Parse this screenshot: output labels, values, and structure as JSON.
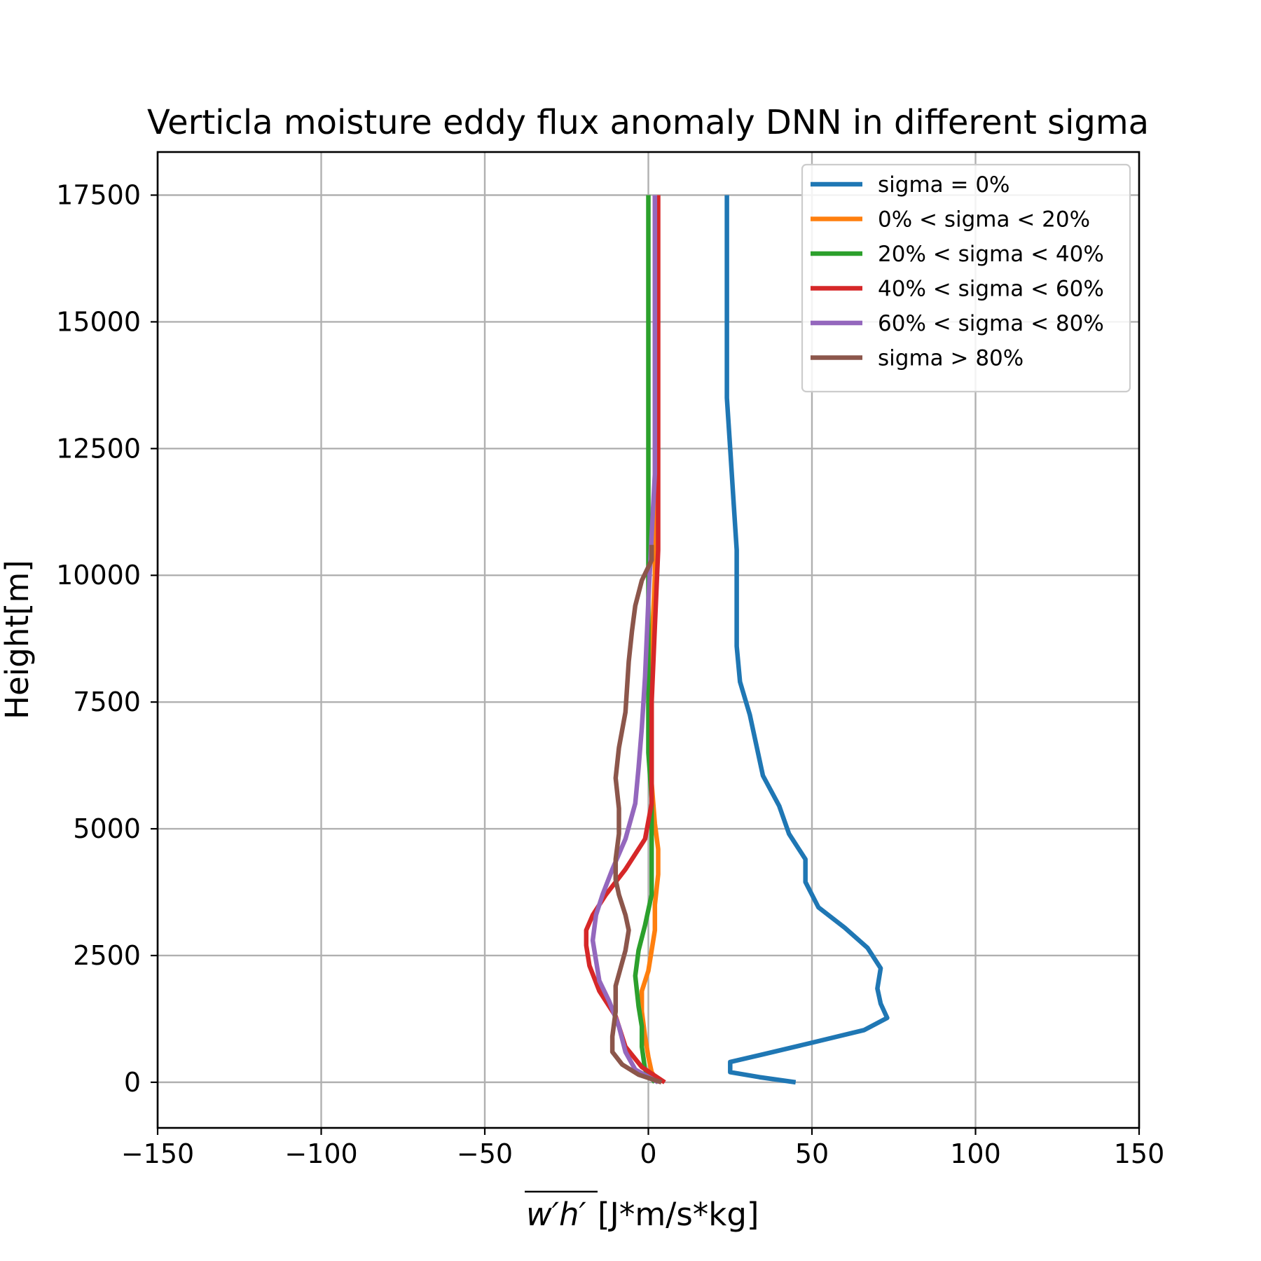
{
  "chart_data": {
    "type": "line",
    "title": "Verticla moisture eddy flux anomaly DNN in different sigma",
    "xlabel": "[J*m/s*kg]",
    "xlabel_math": "w′h′",
    "ylabel": "Height[m]",
    "xlim": [
      -150,
      150
    ],
    "ylim": [
      -900,
      18350
    ],
    "xticks": [
      -150,
      -100,
      -50,
      0,
      50,
      100,
      150
    ],
    "xtick_labels": [
      "−150",
      "−100",
      "−50",
      "0",
      "50",
      "100",
      "150"
    ],
    "yticks": [
      0,
      2500,
      5000,
      7500,
      10000,
      12500,
      15000,
      17500
    ],
    "ytick_labels": [
      "0",
      "2500",
      "5000",
      "7500",
      "10000",
      "12500",
      "15000",
      "17500"
    ],
    "grid": true,
    "legend_position": "upper-right",
    "series": [
      {
        "name": "sigma = 0%",
        "color": "#1f77b4",
        "points": [
          [
            45,
            0
          ],
          [
            34,
            100
          ],
          [
            25,
            200
          ],
          [
            25,
            400
          ],
          [
            35,
            550
          ],
          [
            50,
            780
          ],
          [
            66,
            1030
          ],
          [
            73,
            1270
          ],
          [
            71,
            1550
          ],
          [
            70,
            1850
          ],
          [
            71,
            2250
          ],
          [
            67,
            2650
          ],
          [
            60,
            3050
          ],
          [
            52,
            3450
          ],
          [
            48,
            3950
          ],
          [
            48,
            4400
          ],
          [
            43,
            4900
          ],
          [
            40,
            5450
          ],
          [
            35,
            6050
          ],
          [
            31,
            7250
          ],
          [
            28,
            7900
          ],
          [
            27,
            8600
          ],
          [
            27,
            9500
          ],
          [
            27,
            10500
          ],
          [
            26,
            11500
          ],
          [
            25,
            12500
          ],
          [
            24,
            13500
          ],
          [
            24,
            14500
          ],
          [
            24,
            16000
          ],
          [
            24,
            17500
          ]
        ]
      },
      {
        "name": "0% < sigma < 20%",
        "color": "#ff7f0e",
        "points": [
          [
            3,
            0
          ],
          [
            1,
            200
          ],
          [
            0,
            500
          ],
          [
            -1,
            900
          ],
          [
            -2,
            1400
          ],
          [
            -2,
            1800
          ],
          [
            0,
            2200
          ],
          [
            2,
            3000
          ],
          [
            2,
            3500
          ],
          [
            3,
            4100
          ],
          [
            3,
            4600
          ],
          [
            2,
            5100
          ],
          [
            1,
            5900
          ],
          [
            1,
            7000
          ],
          [
            1,
            8500
          ],
          [
            2,
            10000
          ],
          [
            2,
            12000
          ],
          [
            2,
            15000
          ],
          [
            2,
            17500
          ]
        ]
      },
      {
        "name": "20% < sigma < 40%",
        "color": "#2ca02c",
        "points": [
          [
            2,
            0
          ],
          [
            -1,
            250
          ],
          [
            -2,
            700
          ],
          [
            -2,
            1100
          ],
          [
            -3,
            1500
          ],
          [
            -4,
            2100
          ],
          [
            -3,
            2600
          ],
          [
            -1,
            3100
          ],
          [
            1,
            3700
          ],
          [
            1,
            4300
          ],
          [
            1,
            4900
          ],
          [
            1,
            5600
          ],
          [
            0,
            6500
          ],
          [
            0,
            8000
          ],
          [
            0,
            10000
          ],
          [
            0,
            12000
          ],
          [
            0,
            14000
          ],
          [
            0,
            16000
          ],
          [
            0,
            17500
          ]
        ]
      },
      {
        "name": "40% < sigma < 60%",
        "color": "#d62728",
        "points": [
          [
            5,
            0
          ],
          [
            -2,
            300
          ],
          [
            -7,
            700
          ],
          [
            -10,
            1300
          ],
          [
            -15,
            1800
          ],
          [
            -18,
            2300
          ],
          [
            -19,
            2700
          ],
          [
            -19,
            3000
          ],
          [
            -17,
            3300
          ],
          [
            -13,
            3700
          ],
          [
            -7,
            4200
          ],
          [
            -1,
            4800
          ],
          [
            1,
            5500
          ],
          [
            1,
            6500
          ],
          [
            1,
            7500
          ],
          [
            2,
            9000
          ],
          [
            3,
            10500
          ],
          [
            3,
            12000
          ],
          [
            3,
            14000
          ],
          [
            3,
            16000
          ],
          [
            3,
            17500
          ]
        ]
      },
      {
        "name": "60% < sigma < 80%",
        "color": "#9467bd",
        "points": [
          [
            3,
            0
          ],
          [
            -4,
            250
          ],
          [
            -7,
            600
          ],
          [
            -9,
            1100
          ],
          [
            -12,
            1600
          ],
          [
            -15,
            2000
          ],
          [
            -16,
            2400
          ],
          [
            -17,
            2800
          ],
          [
            -16,
            3300
          ],
          [
            -14,
            3700
          ],
          [
            -11,
            4200
          ],
          [
            -7,
            4800
          ],
          [
            -4,
            5500
          ],
          [
            -3,
            6200
          ],
          [
            -2,
            7000
          ],
          [
            -1,
            8000
          ],
          [
            0,
            9500
          ],
          [
            1,
            10800
          ],
          [
            2,
            12000
          ],
          [
            2,
            14000
          ],
          [
            2,
            16000
          ],
          [
            2,
            17500
          ]
        ]
      },
      {
        "name": "sigma > 80%",
        "color": "#8c564b",
        "points": [
          [
            4,
            0
          ],
          [
            -3,
            150
          ],
          [
            -8,
            350
          ],
          [
            -11,
            600
          ],
          [
            -11,
            900
          ],
          [
            -10,
            1400
          ],
          [
            -10,
            1900
          ],
          [
            -7,
            2600
          ],
          [
            -6,
            3000
          ],
          [
            -7,
            3300
          ],
          [
            -9,
            3700
          ],
          [
            -10,
            4000
          ],
          [
            -10,
            4400
          ],
          [
            -9,
            4900
          ],
          [
            -9,
            5400
          ],
          [
            -10,
            6000
          ],
          [
            -9,
            6600
          ],
          [
            -7,
            7300
          ],
          [
            -6,
            8300
          ],
          [
            -5,
            8900
          ],
          [
            -4,
            9400
          ],
          [
            -2,
            9900
          ],
          [
            1,
            10300
          ],
          [
            1,
            10600
          ]
        ]
      }
    ]
  }
}
